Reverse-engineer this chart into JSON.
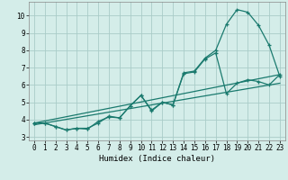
{
  "xlabel": "Humidex (Indice chaleur)",
  "background_color": "#d4ede9",
  "grid_color": "#aaccc8",
  "line_color": "#1a7a6e",
  "xlim": [
    -0.5,
    23.5
  ],
  "ylim": [
    2.8,
    10.8
  ],
  "xticks": [
    0,
    1,
    2,
    3,
    4,
    5,
    6,
    7,
    8,
    9,
    10,
    11,
    12,
    13,
    14,
    15,
    16,
    17,
    18,
    19,
    20,
    21,
    22,
    23
  ],
  "yticks": [
    3,
    4,
    5,
    6,
    7,
    8,
    9,
    10
  ],
  "series1_x": [
    0,
    1,
    2,
    3,
    4,
    5,
    6,
    7,
    8,
    9,
    10,
    11,
    12,
    13,
    14,
    15,
    16,
    17,
    18,
    19,
    20,
    21,
    22,
    23
  ],
  "series1_y": [
    3.8,
    3.8,
    3.6,
    3.4,
    3.5,
    3.5,
    3.8,
    4.2,
    4.1,
    4.8,
    5.4,
    4.5,
    5.0,
    4.85,
    6.7,
    6.8,
    7.55,
    8.0,
    9.5,
    10.35,
    10.2,
    9.45,
    8.3,
    6.5
  ],
  "series2_x": [
    0,
    1,
    2,
    3,
    4,
    5,
    6,
    7,
    8,
    9,
    10,
    11,
    12,
    13,
    14,
    15,
    16,
    17,
    18,
    19,
    20,
    21,
    22,
    23
  ],
  "series2_y": [
    3.8,
    3.8,
    3.6,
    3.4,
    3.5,
    3.45,
    3.9,
    4.15,
    4.1,
    4.8,
    5.4,
    4.55,
    5.0,
    4.85,
    6.65,
    6.75,
    7.5,
    7.85,
    5.5,
    6.1,
    6.3,
    6.2,
    6.0,
    6.6
  ],
  "series3_x": [
    0,
    23
  ],
  "series3_y": [
    3.8,
    6.6
  ],
  "series4_x": [
    0,
    23
  ],
  "series4_y": [
    3.7,
    6.1
  ],
  "tick_fontsize": 5.5,
  "xlabel_fontsize": 6.5
}
